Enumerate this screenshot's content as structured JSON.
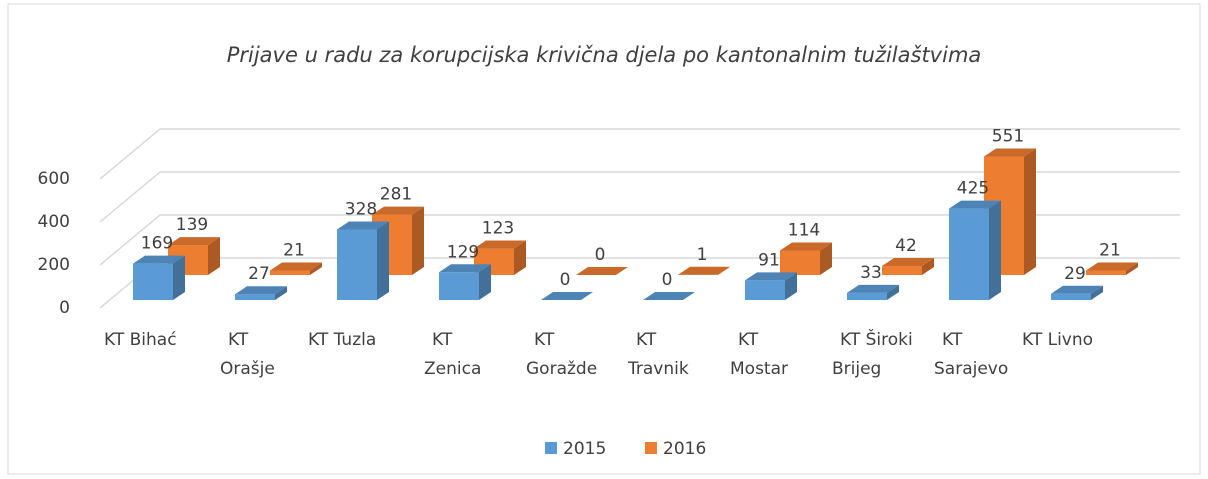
{
  "chart_data": {
    "type": "bar3d",
    "title": "Prijave u radu za korupcijska krivična djela po kantonalnim tužilaštvima",
    "categories": [
      "KT Bihać",
      "KT Orašje",
      "KT Tuzla",
      "KT Zenica",
      "KT Goražde",
      "KT Travnik",
      "KT Mostar",
      "KT Široki Brijeg",
      "KT Sarajevo",
      "KT Livno"
    ],
    "series": [
      {
        "name": "2015",
        "color": "#5b9bd5",
        "values": [
          169,
          27,
          328,
          129,
          0,
          0,
          91,
          33,
          425,
          29
        ]
      },
      {
        "name": "2016",
        "color": "#ed7d31",
        "values": [
          139,
          21,
          281,
          123,
          0,
          1,
          114,
          42,
          551,
          21
        ]
      }
    ],
    "ylim": [
      0,
      600
    ],
    "yticks": [
      0,
      200,
      400,
      600
    ],
    "grid": true,
    "legend": "bottom"
  }
}
